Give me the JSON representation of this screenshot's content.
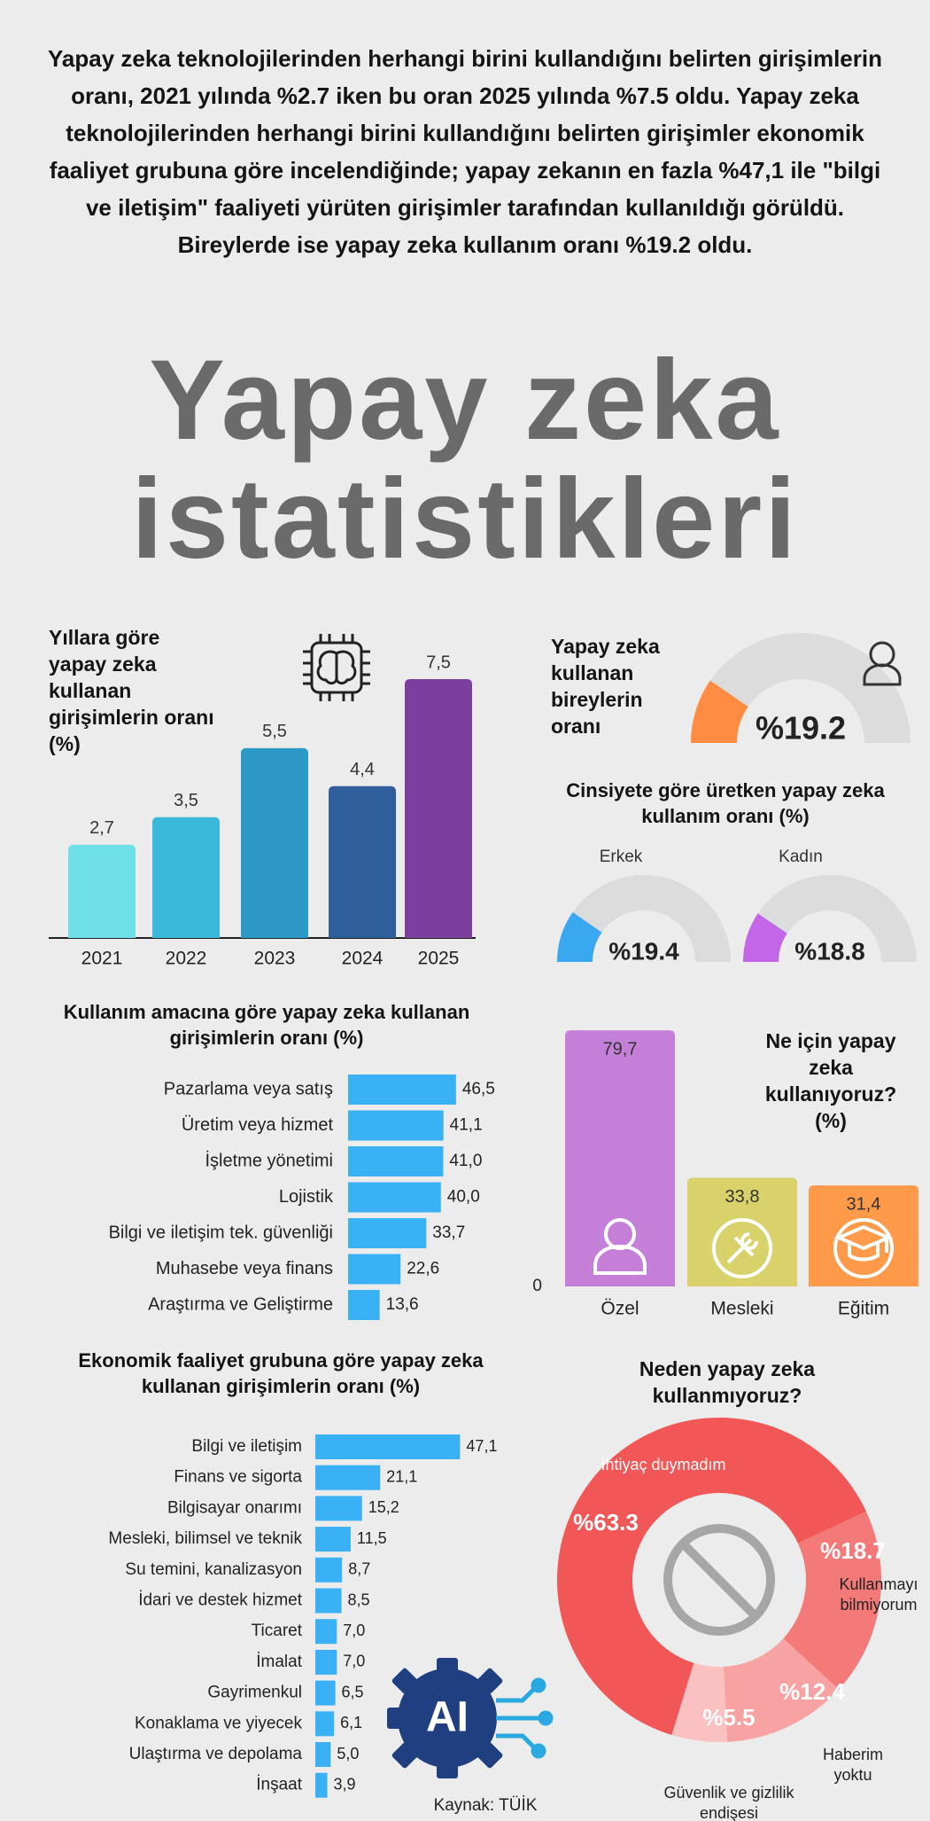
{
  "intro": "Yapay zeka teknolojilerinden herhangi birini kullandığını belirten girişimlerin oranı, 2021 yılında %2.7 iken bu oran 2025 yılında %7.5 oldu. Yapay zeka teknolojilerinden herhangi birini kullandığını belirten girişimler ekonomik faaliyet grubuna göre incelendiğinde; yapay zekanın en fazla %47,1 ile \"bilgi ve iletişim\" faaliyeti yürüten girişimler tarafından kullanıldığı görüldü. Bireylerde ise yapay zeka kullanım oranı %19.2 oldu.",
  "headline": "Yapay zeka istatistikleri",
  "source": "Kaynak: TÜİK",
  "logo_text": "AI",
  "chart_data": [
    {
      "type": "bar",
      "title": "Yıllara göre yapay zeka kullanan girişimlerin oranı (%)",
      "categories": [
        "2021",
        "2022",
        "2023",
        "2024",
        "2025"
      ],
      "values": [
        2.7,
        3.5,
        5.5,
        4.4,
        7.5
      ],
      "value_labels": [
        "2,7",
        "3,5",
        "5,5",
        "4,4",
        "7,5"
      ],
      "colors": [
        "#6fe0e8",
        "#3cb9da",
        "#2b98c6",
        "#2e5f9b",
        "#7b3f9e"
      ]
    },
    {
      "type": "gauge",
      "title": "Yapay zeka kullanan bireylerin oranı",
      "values": [
        19.2
      ],
      "value_labels": [
        "%19.2"
      ],
      "colors": [
        "#ff8c42"
      ],
      "ylim": [
        0,
        100
      ]
    },
    {
      "type": "gauge",
      "title": "Cinsiyete göre üretken yapay zeka kullanım oranı (%)",
      "categories": [
        "Erkek",
        "Kadın"
      ],
      "values": [
        19.4,
        18.8
      ],
      "value_labels": [
        "%19.4",
        "%18.8"
      ],
      "colors": [
        "#3aa8f0",
        "#c466e8"
      ],
      "ylim": [
        0,
        100
      ]
    },
    {
      "type": "hbar",
      "title": "Kullanım amacına göre yapay zeka kullanan girişimlerin oranı (%)",
      "categories": [
        "Pazarlama veya satış",
        "Üretim veya hizmet",
        "İşletme yönetimi",
        "Lojistik",
        "Bilgi ve iletişim tek. güvenliği",
        "Muhasebe veya finans",
        "Araştırma ve Geliştirme"
      ],
      "values": [
        46.5,
        41.1,
        41.0,
        40.0,
        33.7,
        22.6,
        13.6
      ],
      "value_labels": [
        "46,5",
        "41,1",
        "41,0",
        "40,0",
        "33,7",
        "22,6",
        "13,6"
      ],
      "color": "#3ab0f5"
    },
    {
      "type": "bar",
      "title": "Ne için yapay zeka kullanıyoruz? (%)",
      "categories": [
        "Özel",
        "Mesleki",
        "Eğitim"
      ],
      "values": [
        79.7,
        33.8,
        31.4
      ],
      "value_labels": [
        "79,7",
        "33,8",
        "31,4"
      ],
      "colors": [
        "#c47fd8",
        "#d9d26a",
        "#ff9a4a"
      ],
      "ylim": [
        0,
        80
      ],
      "yticks": [
        0
      ]
    },
    {
      "type": "hbar",
      "title": "Ekonomik faaliyet grubuna göre yapay zeka kullanan girişimlerin oranı (%)",
      "categories": [
        "Bilgi ve iletişim",
        "Finans ve sigorta",
        "Bilgisayar onarımı",
        "Mesleki, bilimsel ve teknik",
        "Su temini, kanalizasyon",
        "İdari ve destek hizmet",
        "Ticaret",
        "İmalat",
        "Gayrimenkul",
        "Konaklama ve yiyecek",
        "Ulaştırma ve depolama",
        "İnşaat"
      ],
      "values": [
        47.1,
        21.1,
        15.2,
        11.5,
        8.7,
        8.5,
        7.0,
        7.0,
        6.5,
        6.1,
        5.0,
        3.9
      ],
      "value_labels": [
        "47,1",
        "21,1",
        "15,2",
        "11,5",
        "8,7",
        "8,5",
        "7,0",
        "7,0",
        "6,5",
        "6,1",
        "5,0",
        "3,9"
      ],
      "color": "#3ab0f5"
    },
    {
      "type": "pie",
      "title": "Neden yapay zeka kullanmıyoruz?",
      "categories": [
        "İhtiyaç duymadım",
        "Kullanmayı bilmiyorum",
        "Haberim yoktu",
        "Güvenlik ve gizlilik endişesi"
      ],
      "values": [
        63.3,
        18.7,
        12.4,
        5.5
      ],
      "value_labels": [
        "%63.3",
        "%18.7",
        "%12.4",
        "%5.5"
      ],
      "colors": [
        "#f25757",
        "#f47a7a",
        "#f8a3a3",
        "#fbc0c0"
      ]
    }
  ]
}
